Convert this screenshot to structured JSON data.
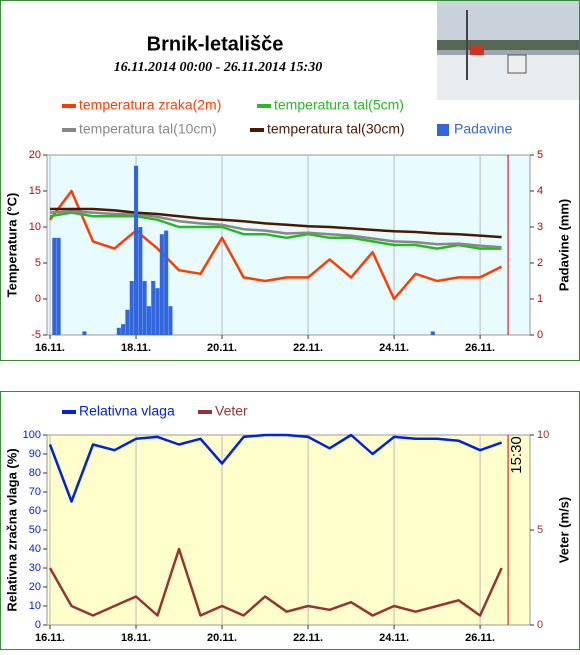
{
  "chart_data": [
    {
      "type": "line",
      "title": "Brnik-letališče",
      "subtitle": "16.11.2014 00:00 - 26.11.2014 15:30",
      "y_label": "Temperatura (°C)",
      "y2_label": "Padavine (mm)",
      "x": [
        0,
        0.5,
        1,
        1.5,
        2,
        2.5,
        3,
        3.5,
        4,
        4.5,
        5,
        5.5,
        6,
        6.5,
        7,
        7.5,
        8,
        8.5,
        9,
        9.5,
        10,
        10.5
      ],
      "xlim": [
        -0.07,
        11.16
      ],
      "xticks": [
        {
          "value": 0,
          "label": "16.11."
        },
        {
          "value": 2,
          "label": "18.11."
        },
        {
          "value": 4,
          "label": "20.11."
        },
        {
          "value": 6,
          "label": "22.11."
        },
        {
          "value": 8,
          "label": "24.11."
        },
        {
          "value": 10,
          "label": "26.11."
        }
      ],
      "ylim": [
        -5,
        20
      ],
      "yticks": [
        -5,
        0,
        5,
        10,
        15,
        20
      ],
      "y2lim": [
        0,
        5
      ],
      "y2ticks": [
        0,
        1,
        2,
        3,
        4,
        5
      ],
      "grid": "x",
      "marker_x": 10.65,
      "background": "#e8fbff",
      "series": [
        {
          "name": "temperatura zraka(2m)",
          "color": "#ff3c00",
          "values": [
            11,
            15,
            8,
            7,
            9.5,
            7,
            4,
            3.5,
            8.5,
            3,
            2.5,
            3,
            3,
            5.5,
            3,
            6.5,
            0,
            3.5,
            2.5,
            3,
            3,
            4.5
          ]
        },
        {
          "name": "temperatura tal(5cm)",
          "color": "#22bb22",
          "values": [
            11.5,
            12,
            11.5,
            11.5,
            11.5,
            11,
            10,
            10,
            10,
            9,
            9,
            8.5,
            9,
            8.5,
            8.5,
            8,
            7.5,
            7.5,
            7,
            7.5,
            7,
            7
          ]
        },
        {
          "name": "temperatura tal(10cm)",
          "color": "#888888",
          "values": [
            12,
            12.2,
            12,
            11.8,
            11.8,
            11.4,
            10.8,
            10.5,
            10.3,
            9.7,
            9.5,
            9.1,
            9.2,
            9,
            8.8,
            8.4,
            8,
            7.9,
            7.6,
            7.7,
            7.4,
            7.2
          ]
        },
        {
          "name": "temperatura tal(30cm)",
          "color": "#4a1a00",
          "values": [
            12.5,
            12.5,
            12.5,
            12.3,
            12,
            11.8,
            11.5,
            11.2,
            11,
            10.8,
            10.5,
            10.3,
            10.1,
            10,
            9.8,
            9.6,
            9.4,
            9.3,
            9.1,
            9,
            8.8,
            8.6
          ]
        },
        {
          "name": "Padavine",
          "type": "bar",
          "axis": "y2",
          "color": "#3366dd",
          "x": [
            0.1,
            0.2,
            0.8,
            1.6,
            1.7,
            1.8,
            1.9,
            2.0,
            2.1,
            2.2,
            2.3,
            2.4,
            2.5,
            2.6,
            2.7,
            2.8,
            8.9
          ],
          "values": [
            2.7,
            2.7,
            0.1,
            0.2,
            0.3,
            0.7,
            1.5,
            4.7,
            3,
            1.5,
            0.8,
            1.5,
            1.3,
            2.8,
            2.9,
            0.8,
            0.1
          ]
        }
      ]
    },
    {
      "type": "line",
      "y_label": "Relativna zračna vlaga (%)",
      "y2_label": "Veter (m/s)",
      "annotation": "15:30",
      "x": [
        0,
        0.5,
        1,
        1.5,
        2,
        2.5,
        3,
        3.5,
        4,
        4.5,
        5,
        5.5,
        6,
        6.5,
        7,
        7.5,
        8,
        8.5,
        9,
        9.5,
        10,
        10.5
      ],
      "xlim": [
        -0.07,
        11.16
      ],
      "xticks": [
        {
          "value": 0,
          "label": "16.11."
        },
        {
          "value": 2,
          "label": "18.11."
        },
        {
          "value": 4,
          "label": "20.11."
        },
        {
          "value": 6,
          "label": "22.11."
        },
        {
          "value": 8,
          "label": "24.11."
        },
        {
          "value": 10,
          "label": "26.11."
        }
      ],
      "ylim": [
        0,
        100
      ],
      "yticks": [
        0,
        10,
        20,
        30,
        40,
        50,
        60,
        70,
        80,
        90,
        100
      ],
      "y2lim": [
        0,
        10
      ],
      "y2ticks": [
        0,
        5,
        10
      ],
      "grid": "x",
      "marker_x": 10.65,
      "background": "#ffffcc",
      "series": [
        {
          "name": "Relativna vlaga",
          "color": "#0022dd",
          "values": [
            95,
            65,
            95,
            92,
            98,
            99,
            95,
            98,
            85,
            99,
            100,
            100,
            99,
            93,
            100,
            90,
            99,
            98,
            98,
            97,
            92,
            96
          ]
        },
        {
          "name": "Veter",
          "axis": "y2",
          "color": "#993333",
          "values": [
            3,
            1,
            0.5,
            1,
            1.5,
            0.5,
            4,
            0.5,
            1,
            0.5,
            1.5,
            0.7,
            1,
            0.8,
            1.2,
            0.5,
            1,
            0.7,
            1,
            1.3,
            0.5,
            3
          ]
        }
      ]
    }
  ]
}
